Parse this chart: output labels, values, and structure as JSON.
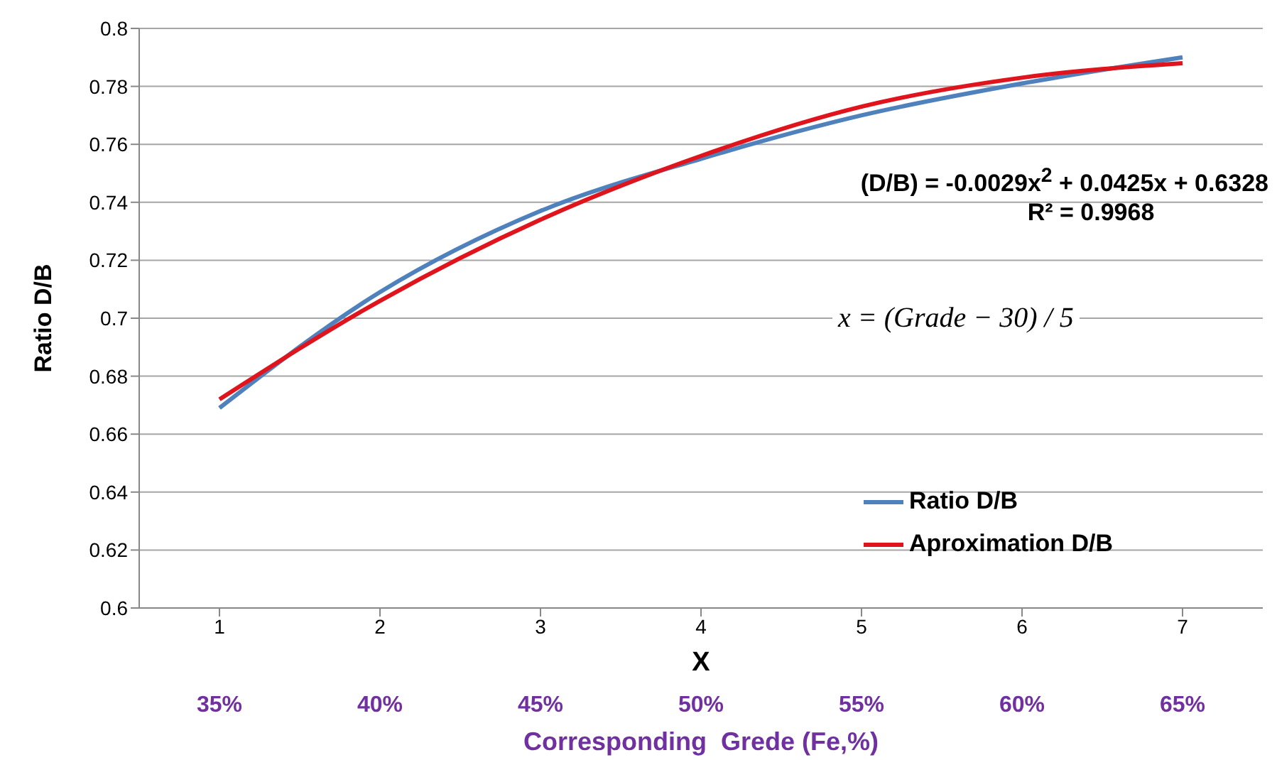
{
  "chart_data": {
    "type": "line",
    "xlabel": "X",
    "ylabel": "Ratio D/B",
    "categories": [
      "1",
      "2",
      "3",
      "4",
      "5",
      "6",
      "7"
    ],
    "series": [
      {
        "name": "Ratio D/B",
        "color": "#4f81bd",
        "values": [
          0.669,
          0.709,
          0.737,
          0.755,
          0.77,
          0.781,
          0.79
        ]
      },
      {
        "name": "Aproximation D/B",
        "color": "#e0141c",
        "values": [
          0.672,
          0.706,
          0.734,
          0.756,
          0.773,
          0.783,
          0.788
        ]
      }
    ],
    "ylim": [
      0.6,
      0.8
    ],
    "yticks": [
      0.6,
      0.62,
      0.64,
      0.66,
      0.68,
      0.7,
      0.72,
      0.74,
      0.76,
      0.78,
      0.8
    ],
    "grid": "y",
    "legend": "bottom right",
    "marker": "none",
    "line_style": "solid",
    "annotations": [
      "(D/B) = -0.0029x$^{2}$ + 0.0425x + 0.6328",
      "R² = 0.9968",
      "x = (Grade − 30) / 5",
      "35%",
      "40%",
      "45%",
      "50%",
      "55%",
      "60%",
      "65%",
      "Corresponding  Grede (Fe,%)"
    ]
  }
}
